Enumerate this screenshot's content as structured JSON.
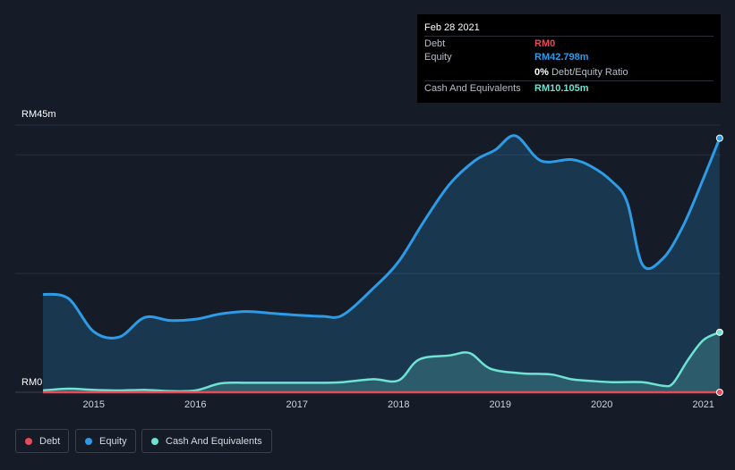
{
  "tooltip": {
    "date": "Feb 28 2021",
    "debt_label": "Debt",
    "debt_value": "RM0",
    "equity_label": "Equity",
    "equity_value": "RM42.798m",
    "ratio_value": "0%",
    "ratio_label": "Debt/Equity Ratio",
    "cash_label": "Cash And Equivalents",
    "cash_value": "RM10.105m"
  },
  "legend": {
    "debt": "Debt",
    "equity": "Equity",
    "cash": "Cash And Equivalents"
  },
  "colors": {
    "debt": "#e64b57",
    "equity": "#2d9be5",
    "cash": "#6fe3d2",
    "background": "#151b27"
  },
  "chart_data": {
    "type": "area",
    "title": "",
    "ylabel_top": "RM45m",
    "ylabel_bottom": "RM0",
    "ylim": [
      0,
      45
    ],
    "xlim": [
      2014.5,
      2021.17
    ],
    "x_ticks": [
      "2015",
      "2016",
      "2017",
      "2018",
      "2019",
      "2020",
      "2021"
    ],
    "x_tick_values": [
      2015,
      2016,
      2017,
      2018,
      2019,
      2020,
      2021
    ],
    "series": [
      {
        "name": "Equity",
        "x": [
          2014.5,
          2014.75,
          2015.0,
          2015.25,
          2015.5,
          2015.75,
          2016.0,
          2016.25,
          2016.5,
          2016.75,
          2017.0,
          2017.25,
          2017.45,
          2017.75,
          2018.0,
          2018.25,
          2018.5,
          2018.75,
          2018.95,
          2019.15,
          2019.4,
          2019.7,
          2019.9,
          2020.1,
          2020.25,
          2020.4,
          2020.6,
          2020.8,
          2021.0,
          2021.16
        ],
        "values": [
          16.5,
          15.8,
          10.2,
          9.3,
          12.6,
          12.1,
          12.3,
          13.2,
          13.6,
          13.3,
          13.0,
          12.8,
          13.0,
          17.5,
          22.0,
          28.8,
          35.0,
          39.0,
          40.8,
          43.2,
          39.0,
          39.2,
          38.0,
          35.5,
          32.0,
          21.5,
          22.5,
          28.0,
          36.0,
          42.798
        ]
      },
      {
        "name": "Cash And Equivalents",
        "x": [
          2014.5,
          2014.75,
          2015.0,
          2015.25,
          2015.5,
          2015.75,
          2016.0,
          2016.25,
          2016.5,
          2016.75,
          2017.0,
          2017.25,
          2017.45,
          2017.75,
          2018.0,
          2018.2,
          2018.5,
          2018.7,
          2018.9,
          2019.2,
          2019.5,
          2019.7,
          2019.9,
          2020.1,
          2020.4,
          2020.6,
          2020.7,
          2020.85,
          2021.0,
          2021.16
        ],
        "values": [
          0.3,
          0.6,
          0.4,
          0.3,
          0.4,
          0.2,
          0.3,
          1.5,
          1.6,
          1.6,
          1.6,
          1.6,
          1.7,
          2.2,
          2.0,
          5.5,
          6.2,
          6.6,
          4.0,
          3.2,
          3.0,
          2.2,
          1.9,
          1.7,
          1.7,
          1.1,
          1.5,
          5.5,
          8.8,
          10.105
        ]
      },
      {
        "name": "Debt",
        "x": [
          2014.5,
          2015.0,
          2015.5,
          2016.0,
          2016.5,
          2017.0,
          2018.0,
          2019.0,
          2020.0,
          2021.16
        ],
        "values": [
          0,
          0,
          0,
          0,
          0,
          0,
          0,
          0,
          0,
          0
        ]
      }
    ]
  }
}
